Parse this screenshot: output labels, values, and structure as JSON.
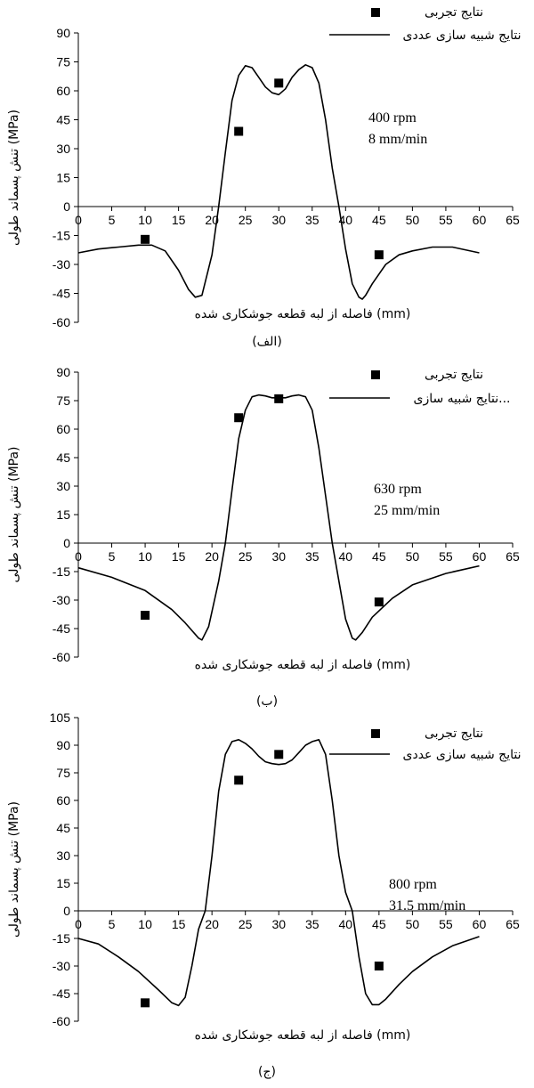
{
  "chart_data": [
    {
      "type": "line",
      "panel_label": "(الف)",
      "xlabel": "فاصله از لبه قطعه جوشکاری شده (mm)",
      "ylabel": "تنش پسماند طولی (MPa)",
      "x_ticks": [
        0,
        5,
        10,
        15,
        20,
        25,
        30,
        35,
        40,
        45,
        50,
        55,
        60,
        65
      ],
      "y_ticks": [
        90,
        75,
        60,
        45,
        30,
        15,
        0,
        -15,
        -30,
        -45,
        -60
      ],
      "xlim": [
        0,
        65
      ],
      "ylim": [
        -60,
        90
      ],
      "annotation": [
        "400 rpm",
        "8 mm/min"
      ],
      "legend": {
        "position": "top-right",
        "experimental": "نتایج تجربی",
        "simulation": "نتایج شبیه سازی عددی"
      },
      "series": [
        {
          "name": "نتایج تجربی",
          "kind": "scatter",
          "points": [
            [
              10,
              -17
            ],
            [
              24,
              39
            ],
            [
              30,
              64
            ],
            [
              45,
              -25
            ]
          ]
        },
        {
          "name": "نتایج شبیه سازی عددی",
          "kind": "line",
          "points": [
            [
              0,
              -24
            ],
            [
              3,
              -22
            ],
            [
              6,
              -21
            ],
            [
              9,
              -20
            ],
            [
              11,
              -20
            ],
            [
              13,
              -23
            ],
            [
              15,
              -33
            ],
            [
              16.5,
              -43
            ],
            [
              17.5,
              -47
            ],
            [
              18.5,
              -46
            ],
            [
              20,
              -25
            ],
            [
              21,
              0
            ],
            [
              22,
              28
            ],
            [
              23,
              55
            ],
            [
              24,
              68
            ],
            [
              25,
              73
            ],
            [
              26,
              72
            ],
            [
              27,
              67
            ],
            [
              28,
              62
            ],
            [
              29,
              59
            ],
            [
              30,
              58
            ],
            [
              31,
              61
            ],
            [
              32,
              67
            ],
            [
              33,
              71
            ],
            [
              34,
              73.5
            ],
            [
              35,
              72
            ],
            [
              36,
              64
            ],
            [
              37,
              45
            ],
            [
              38,
              20
            ],
            [
              39,
              0
            ],
            [
              40,
              -22
            ],
            [
              41,
              -40
            ],
            [
              42,
              -47
            ],
            [
              42.5,
              -48
            ],
            [
              43,
              -46
            ],
            [
              44,
              -40
            ],
            [
              46,
              -30
            ],
            [
              48,
              -25
            ],
            [
              50,
              -23
            ],
            [
              53,
              -21
            ],
            [
              56,
              -21
            ],
            [
              60,
              -24
            ]
          ]
        }
      ]
    },
    {
      "type": "line",
      "panel_label": "(ب)",
      "xlabel": "فاصله از لبه قطعه جوشکاری شده (mm)",
      "ylabel": "تنش پسماند طولی (MPa)",
      "x_ticks": [
        0,
        5,
        10,
        15,
        20,
        25,
        30,
        35,
        40,
        45,
        50,
        55,
        60,
        65
      ],
      "y_ticks": [
        90,
        75,
        60,
        45,
        30,
        15,
        0,
        -15,
        -30,
        -45,
        -60
      ],
      "xlim": [
        0,
        65
      ],
      "ylim": [
        -60,
        90
      ],
      "annotation": [
        "630 rpm",
        "25 mm/min"
      ],
      "legend": {
        "position": "top-right",
        "experimental": "نتایج تجربی",
        "simulation": "نتایج شبیه سازی..."
      },
      "series": [
        {
          "name": "نتایج تجربی",
          "kind": "scatter",
          "points": [
            [
              10,
              -38
            ],
            [
              24,
              66
            ],
            [
              30,
              76
            ],
            [
              45,
              -31
            ]
          ]
        },
        {
          "name": "نتایج شبیه سازی...",
          "kind": "line",
          "points": [
            [
              0,
              -13
            ],
            [
              5,
              -18
            ],
            [
              10,
              -25
            ],
            [
              14,
              -35
            ],
            [
              16,
              -42
            ],
            [
              18,
              -50
            ],
            [
              18.5,
              -51
            ],
            [
              19.5,
              -44
            ],
            [
              21,
              -20
            ],
            [
              22,
              0
            ],
            [
              23,
              28
            ],
            [
              24,
              55
            ],
            [
              25,
              70
            ],
            [
              26,
              77
            ],
            [
              27,
              78
            ],
            [
              28,
              77.5
            ],
            [
              29,
              76.5
            ],
            [
              30,
              76.5
            ],
            [
              31,
              76.5
            ],
            [
              32,
              77.5
            ],
            [
              33,
              78
            ],
            [
              34,
              77
            ],
            [
              35,
              70
            ],
            [
              36,
              50
            ],
            [
              37,
              25
            ],
            [
              38,
              0
            ],
            [
              39,
              -20
            ],
            [
              40,
              -40
            ],
            [
              41,
              -50
            ],
            [
              41.5,
              -51
            ],
            [
              42.5,
              -47
            ],
            [
              44,
              -39
            ],
            [
              47,
              -29
            ],
            [
              50,
              -22
            ],
            [
              55,
              -16
            ],
            [
              60,
              -12
            ]
          ]
        }
      ]
    },
    {
      "type": "line",
      "panel_label": "(ج)",
      "xlabel": "فاصله از لبه قطعه جوشکاری شده (mm)",
      "ylabel": "تنش پسماند طولی (MPa)",
      "x_ticks": [
        0,
        5,
        10,
        15,
        20,
        25,
        30,
        35,
        40,
        45,
        50,
        55,
        60,
        65
      ],
      "y_ticks": [
        105,
        90,
        75,
        60,
        45,
        30,
        15,
        0,
        -15,
        -30,
        -45,
        -60
      ],
      "xlim": [
        0,
        65
      ],
      "ylim": [
        -60,
        105
      ],
      "annotation": [
        "800 rpm",
        "31.5 mm/min"
      ],
      "legend": {
        "position": "top-right",
        "experimental": "نتایج تجربی",
        "simulation": "نتایج شبیه سازی عددی"
      },
      "series": [
        {
          "name": "نتایج تجربی",
          "kind": "scatter",
          "points": [
            [
              10,
              -50
            ],
            [
              24,
              71
            ],
            [
              30,
              85
            ],
            [
              45,
              -30
            ]
          ]
        },
        {
          "name": "نتایج شبیه سازی عددی",
          "kind": "line",
          "points": [
            [
              0,
              -15
            ],
            [
              3,
              -18
            ],
            [
              6,
              -25
            ],
            [
              9,
              -33
            ],
            [
              12,
              -43
            ],
            [
              14,
              -50
            ],
            [
              15,
              -51.5
            ],
            [
              16,
              -47
            ],
            [
              17,
              -30
            ],
            [
              18,
              -10
            ],
            [
              19,
              0
            ],
            [
              20,
              30
            ],
            [
              21,
              65
            ],
            [
              22,
              85
            ],
            [
              23,
              92
            ],
            [
              24,
              93
            ],
            [
              25,
              91
            ],
            [
              26,
              88
            ],
            [
              27,
              84
            ],
            [
              28,
              81
            ],
            [
              29,
              80
            ],
            [
              30,
              79.5
            ],
            [
              31,
              80
            ],
            [
              32,
              82
            ],
            [
              33,
              86
            ],
            [
              34,
              90
            ],
            [
              35,
              92
            ],
            [
              36,
              93
            ],
            [
              37,
              85
            ],
            [
              38,
              60
            ],
            [
              39,
              30
            ],
            [
              40,
              10
            ],
            [
              41,
              0
            ],
            [
              42,
              -25
            ],
            [
              43,
              -45
            ],
            [
              44,
              -51
            ],
            [
              45,
              -51
            ],
            [
              46,
              -48
            ],
            [
              48,
              -40
            ],
            [
              50,
              -33
            ],
            [
              53,
              -25
            ],
            [
              56,
              -19
            ],
            [
              60,
              -14
            ]
          ]
        }
      ]
    }
  ]
}
